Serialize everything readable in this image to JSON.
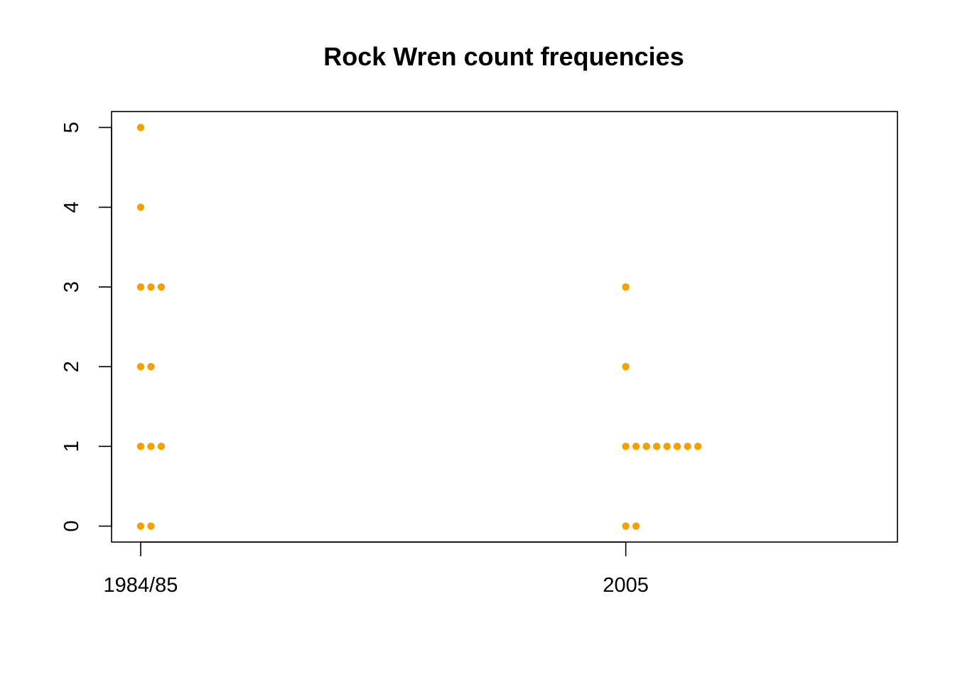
{
  "chart_data": {
    "type": "scatter",
    "title": "Rock Wren count frequencies",
    "xlabel": "",
    "ylabel": "",
    "categories": [
      "1984/85",
      "2005"
    ],
    "y_ticks": [
      "0",
      "1",
      "2",
      "3",
      "4",
      "5"
    ],
    "ylim": [
      -0.2,
      5.2
    ],
    "x_range": [
      0.94,
      2.56
    ],
    "point_color": "#F5A000",
    "series": [
      {
        "category": "1984/85",
        "counts": [
          {
            "y": 0,
            "frequency": 2
          },
          {
            "y": 1,
            "frequency": 3
          },
          {
            "y": 2,
            "frequency": 2
          },
          {
            "y": 3,
            "frequency": 3
          },
          {
            "y": 4,
            "frequency": 1
          },
          {
            "y": 5,
            "frequency": 1
          }
        ]
      },
      {
        "category": "2005",
        "counts": [
          {
            "y": 0,
            "frequency": 2
          },
          {
            "y": 1,
            "frequency": 8
          },
          {
            "y": 2,
            "frequency": 1
          },
          {
            "y": 3,
            "frequency": 1
          }
        ]
      }
    ]
  }
}
